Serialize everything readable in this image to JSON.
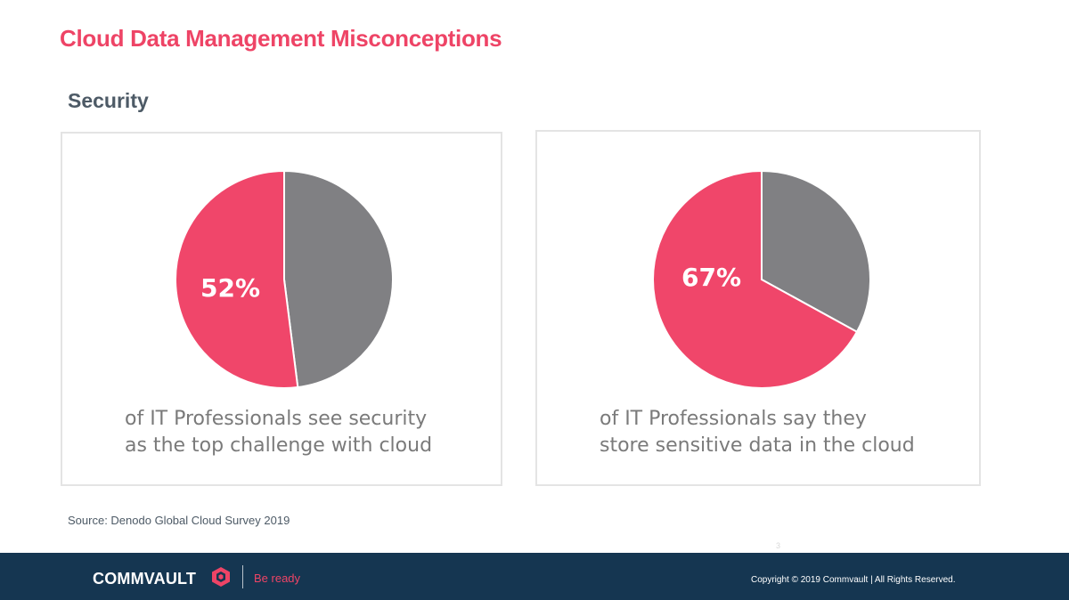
{
  "header": {
    "title": "Cloud Data Management Misconceptions",
    "subtitle": "Security"
  },
  "colors": {
    "accent": "#ee4466",
    "gray": "#808083",
    "footer": "#153651"
  },
  "chart_data": [
    {
      "type": "pie",
      "slices": [
        {
          "value": 52,
          "color": "#f0466a"
        },
        {
          "value": 48,
          "color": "#808083"
        }
      ],
      "data_label": "52%",
      "caption": [
        "of IT Professionals see security",
        "as the top challenge with cloud"
      ]
    },
    {
      "type": "pie",
      "slices": [
        {
          "value": 67,
          "color": "#f0466a"
        },
        {
          "value": 33,
          "color": "#808083"
        }
      ],
      "data_label": "67%",
      "caption": [
        "of IT Professionals say they",
        "store sensitive data in the cloud"
      ]
    }
  ],
  "source": "Source: Denodo Global Cloud Survey 2019",
  "page_number": "3",
  "footer": {
    "brand": "COMMVAULT",
    "brand_mark_icon": "commvault-cube-icon",
    "tagline": "Be ready",
    "copyright": "Copyright © 2019 Commvault | All Rights Reserved."
  }
}
